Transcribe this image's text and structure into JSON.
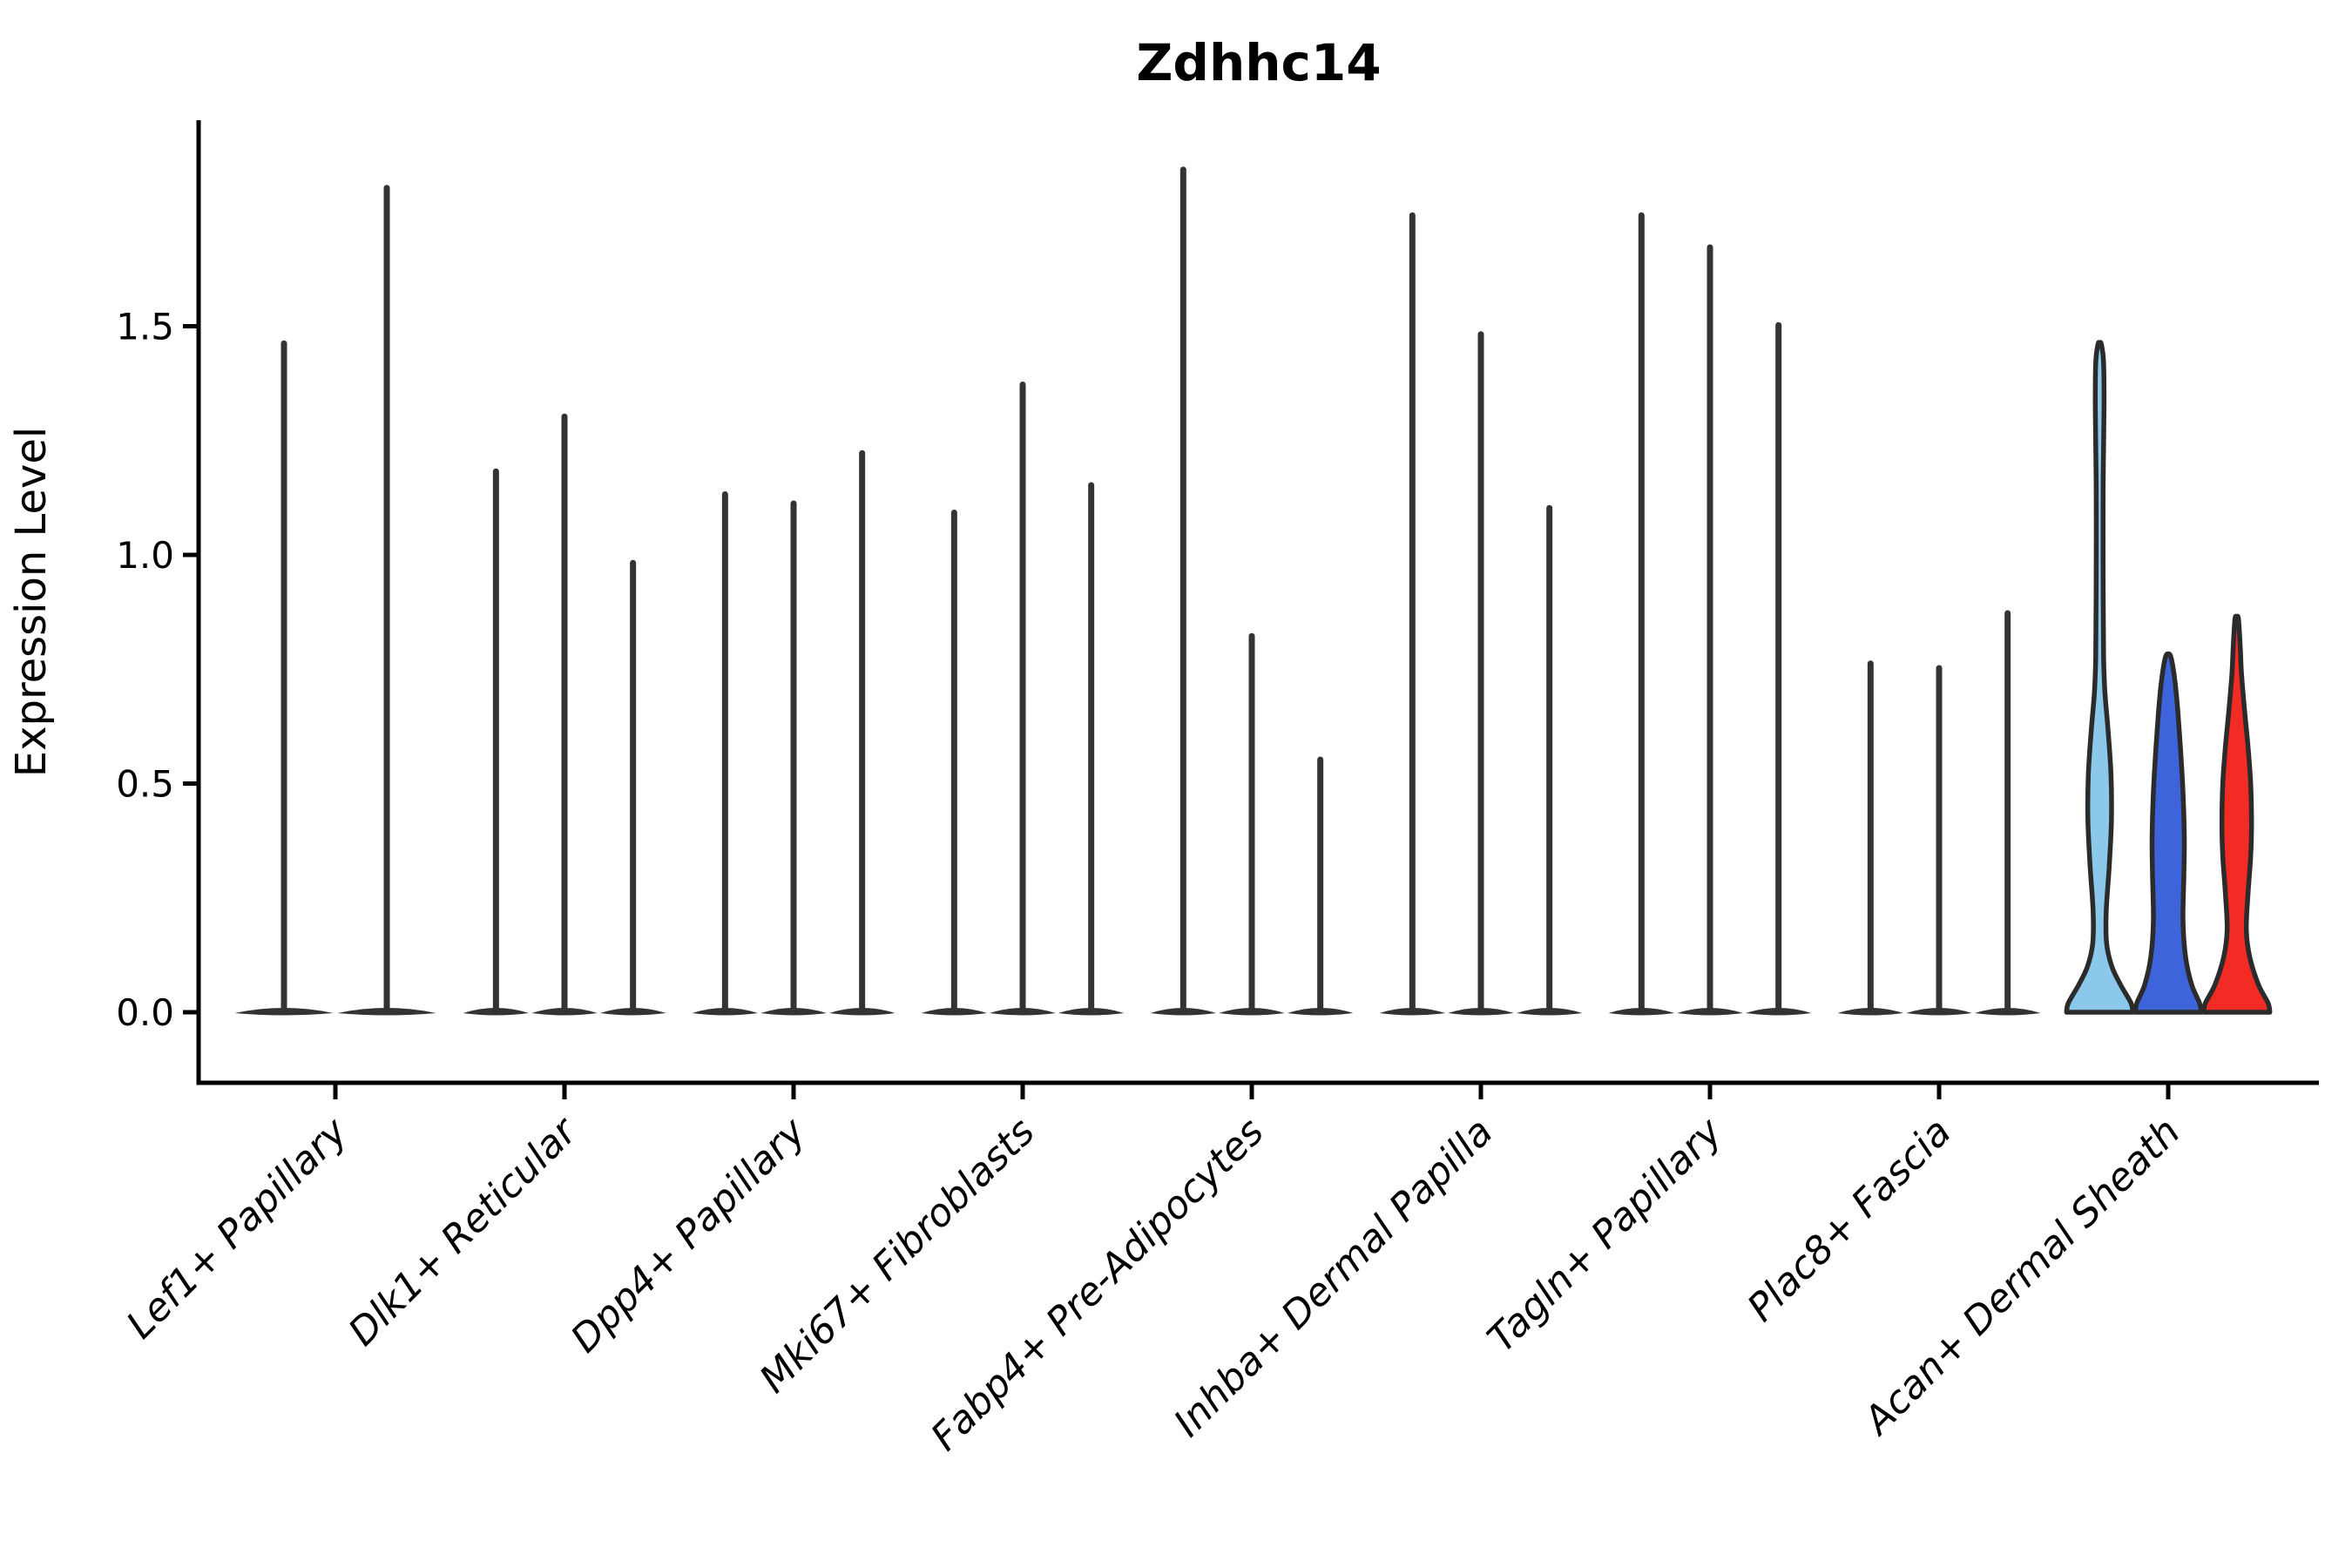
{
  "title": "Zdhhc14",
  "axes": {
    "y_label": "Expression Level",
    "y_tick_labels": [
      "0.0",
      "0.5",
      "1.0",
      "1.5"
    ]
  },
  "colors": {
    "axis": "#000000",
    "violin_line": "#333333",
    "violin_outline": "#2b2b2b",
    "highlight_lightblue": "#8CC8EA",
    "highlight_blue": "#3E64DC",
    "highlight_red": "#F22B25"
  },
  "chart_data": {
    "type": "violin",
    "title": "Zdhhc14",
    "xlabel": "",
    "ylabel": "Expression Level",
    "ylim": [
      0,
      1.95
    ],
    "yticks": [
      0,
      0.5,
      1.0,
      1.5
    ],
    "grid": false,
    "legend": "none",
    "categories": [
      "Lef1+ Papillary",
      "Dlk1+ Reticular",
      "Dpp4+ Papillary",
      "Mki67+ Fibroblasts",
      "Fabp4+ Pre-Adipocytes",
      "Inhba+ Dermal Papilla",
      "Tagln+ Papillary",
      "Plac8+ Fascia",
      "Acan+ Dermal Sheath"
    ],
    "description": "Violin plot of Zdhhc14 expression per fibroblast cluster; each cluster shows 2-3 sample violins. Most violins collapse to a flat base at 0 with a thin spike to the listed maximum. The Acan+ Dermal Sheath violins are filled (light blue, blue, red) and show visible density bulges.",
    "groups": [
      {
        "category": "Lef1+ Papillary",
        "violins": [
          {
            "max": 1.47
          },
          {
            "max": 1.81
          }
        ]
      },
      {
        "category": "Dlk1+ Reticular",
        "violins": [
          {
            "max": 1.19
          },
          {
            "max": 1.31
          },
          {
            "max": 0.99
          }
        ]
      },
      {
        "category": "Dpp4+ Papillary",
        "violins": [
          {
            "max": 1.14
          },
          {
            "max": 1.12
          },
          {
            "max": 1.23
          }
        ]
      },
      {
        "category": "Mki67+ Fibroblasts",
        "violins": [
          {
            "max": 1.1
          },
          {
            "max": 1.38
          },
          {
            "max": 1.16
          }
        ]
      },
      {
        "category": "Fabp4+ Pre-Adipocytes",
        "violins": [
          {
            "max": 1.85
          },
          {
            "max": 0.83
          },
          {
            "max": 0.56
          }
        ]
      },
      {
        "category": "Inhba+ Dermal Papilla",
        "violins": [
          {
            "max": 1.75
          },
          {
            "max": 1.49
          },
          {
            "max": 1.11
          }
        ]
      },
      {
        "category": "Tagln+ Papillary",
        "violins": [
          {
            "max": 1.75
          },
          {
            "max": 1.68
          },
          {
            "max": 1.51
          }
        ]
      },
      {
        "category": "Plac8+ Fascia",
        "violins": [
          {
            "max": 0.77
          },
          {
            "max": 0.76
          },
          {
            "max": 0.88
          }
        ]
      },
      {
        "category": "Acan+ Dermal Sheath",
        "violins": [
          {
            "max": 1.46,
            "color": "#8CC8EA",
            "profile": [
              [
                0,
                38
              ],
              [
                0.02,
                36
              ],
              [
                0.06,
                24
              ],
              [
                0.1,
                14
              ],
              [
                0.15,
                8
              ],
              [
                0.22,
                7.5
              ],
              [
                0.32,
                11
              ],
              [
                0.42,
                13.5
              ],
              [
                0.52,
                13
              ],
              [
                0.62,
                9.5
              ],
              [
                0.7,
                6
              ],
              [
                0.78,
                4.5
              ],
              [
                0.95,
                4
              ],
              [
                1.15,
                4
              ],
              [
                1.32,
                5
              ],
              [
                1.42,
                4.5
              ],
              [
                1.46,
                2
              ]
            ]
          },
          {
            "max": 0.78,
            "color": "#3E64DC",
            "profile": [
              [
                0,
                38
              ],
              [
                0.02,
                36
              ],
              [
                0.06,
                27
              ],
              [
                0.12,
                20
              ],
              [
                0.2,
                17
              ],
              [
                0.3,
                18
              ],
              [
                0.38,
                18.5
              ],
              [
                0.48,
                17
              ],
              [
                0.58,
                14
              ],
              [
                0.66,
                11
              ],
              [
                0.72,
                8
              ],
              [
                0.76,
                5
              ],
              [
                0.78,
                2.5
              ]
            ]
          },
          {
            "max": 0.86,
            "color": "#F22B25",
            "profile": [
              [
                0,
                38
              ],
              [
                0.02,
                36
              ],
              [
                0.06,
                25
              ],
              [
                0.12,
                15
              ],
              [
                0.18,
                11
              ],
              [
                0.26,
                13
              ],
              [
                0.34,
                16
              ],
              [
                0.41,
                17
              ],
              [
                0.5,
                16
              ],
              [
                0.58,
                13
              ],
              [
                0.66,
                9
              ],
              [
                0.74,
                5.5
              ],
              [
                0.8,
                4
              ],
              [
                0.86,
                2
              ]
            ]
          }
        ]
      }
    ]
  }
}
